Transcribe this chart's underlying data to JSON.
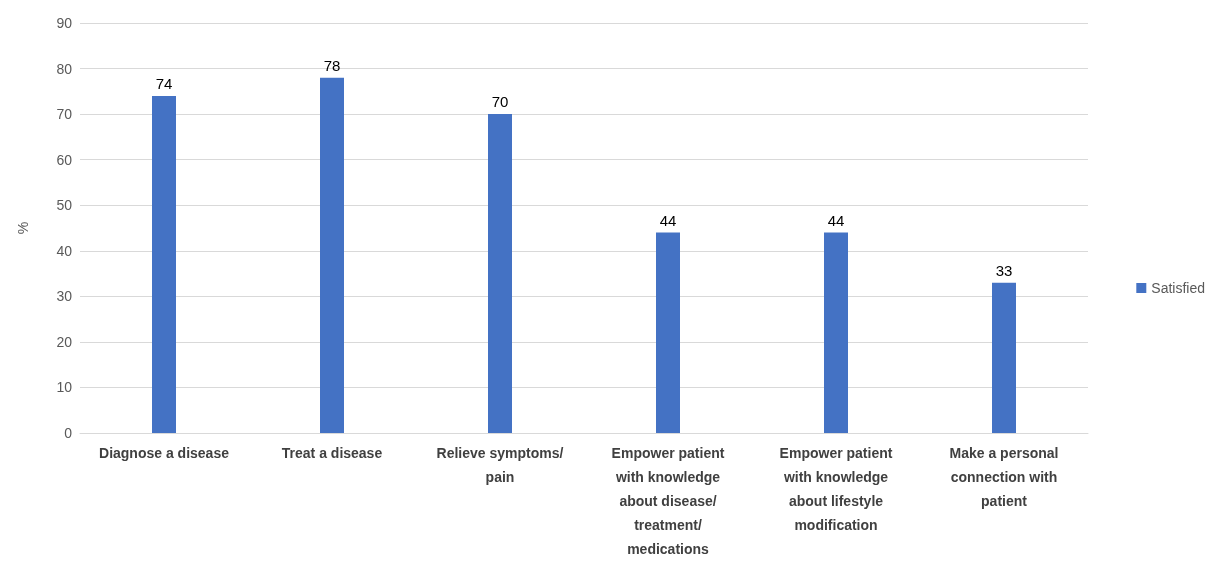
{
  "chart_data": {
    "type": "bar",
    "ylabel": "%",
    "categories": [
      "Diagnose a disease",
      "Treat a disease",
      "Relieve symptoms/pain",
      "Empower patient with knowledge about disease/treatment/ medications",
      "Empower patient with knowledge about lifestyle modification",
      "Make a personal connection with patient"
    ],
    "series": [
      {
        "name": "Satisfied",
        "color": "#4472c4",
        "values": [
          74,
          78,
          70,
          44,
          44,
          33
        ]
      }
    ],
    "ylim": [
      0,
      90
    ],
    "yticks": [
      0,
      10,
      20,
      30,
      40,
      50,
      60,
      70,
      80,
      90
    ],
    "grid": "y",
    "legend": "right",
    "data_labels": true
  }
}
